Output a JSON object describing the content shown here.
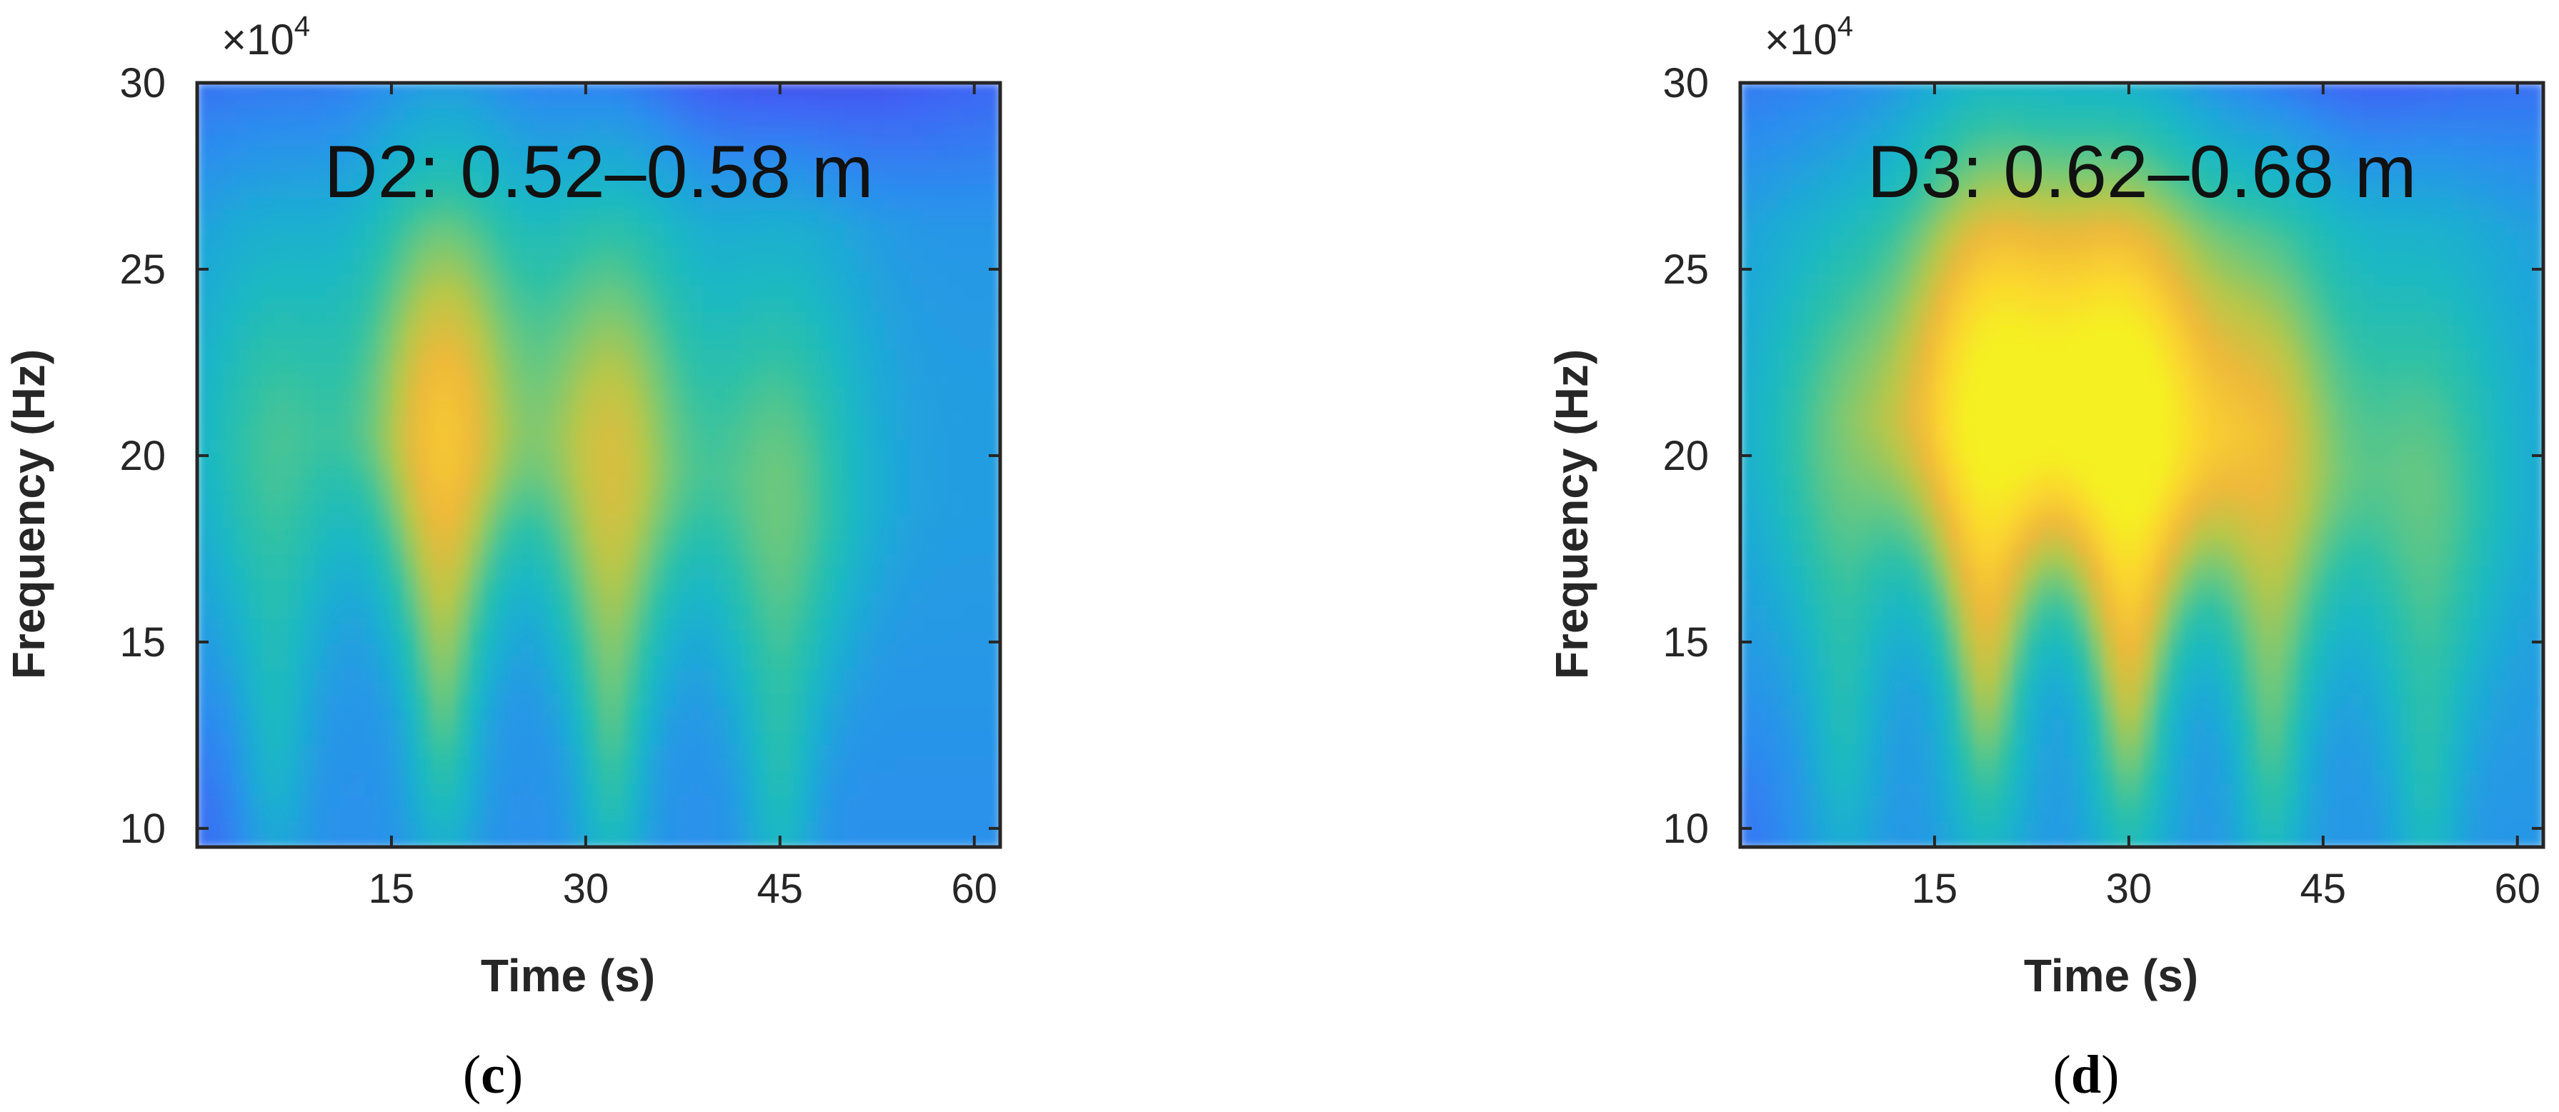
{
  "chart_data": [
    {
      "type": "heatmap",
      "caption_letter": "c",
      "annotation": "D2: 0.52–0.58 m",
      "xlabel": "Time (s)",
      "ylabel": "Frequency (Hz)",
      "y_multiplier": "×10",
      "y_multiplier_exp": "4",
      "xlim": [
        0,
        62
      ],
      "ylim": [
        9.5,
        30
      ],
      "x_ticks": [
        15,
        30,
        45,
        60
      ],
      "y_ticks": [
        10,
        15,
        20,
        25,
        30
      ],
      "colormap": [
        "#3e26a8",
        "#4433d6",
        "#3f64f5",
        "#2c8cef",
        "#1fa7d9",
        "#1bb8c4",
        "#2fc1a6",
        "#6ec87c",
        "#b6c74a",
        "#eeb93a",
        "#fbd52f",
        "#f5f023"
      ],
      "background_level": 0.28,
      "blobs": [
        {
          "t": 6,
          "f": 20,
          "amp": 0.24,
          "width_t": 4.5,
          "height_f": 4.5
        },
        {
          "t": 19,
          "f": 20.5,
          "amp": 0.52,
          "width_t": 4.5,
          "height_f": 5.5
        },
        {
          "t": 32,
          "f": 19.5,
          "amp": 0.44,
          "width_t": 4.5,
          "height_f": 5.5
        },
        {
          "t": 45,
          "f": 18.5,
          "amp": 0.3,
          "width_t": 4.5,
          "height_f": 5.0
        }
      ]
    },
    {
      "type": "heatmap",
      "caption_letter": "d",
      "annotation": "D3: 0.62–0.68 m",
      "xlabel": "Time (s)",
      "ylabel": "Frequency (Hz)",
      "y_multiplier": "×10",
      "y_multiplier_exp": "4",
      "xlim": [
        0,
        62
      ],
      "ylim": [
        9.5,
        30
      ],
      "x_ticks": [
        15,
        30,
        45,
        60
      ],
      "y_ticks": [
        10,
        15,
        20,
        25,
        30
      ],
      "colormap": [
        "#3e26a8",
        "#4433d6",
        "#3f64f5",
        "#2c8cef",
        "#1fa7d9",
        "#1bb8c4",
        "#2fc1a6",
        "#6ec87c",
        "#b6c74a",
        "#eeb93a",
        "#fbd52f",
        "#f5f023"
      ],
      "background_level": 0.3,
      "blobs": [
        {
          "t": 8,
          "f": 20,
          "amp": 0.26,
          "width_t": 4.5,
          "height_f": 4.5
        },
        {
          "t": 19,
          "f": 21,
          "amp": 0.62,
          "width_t": 5.0,
          "height_f": 6.0
        },
        {
          "t": 30,
          "f": 20.5,
          "amp": 0.66,
          "width_t": 5.0,
          "height_f": 6.0
        },
        {
          "t": 41,
          "f": 19.5,
          "amp": 0.42,
          "width_t": 4.5,
          "height_f": 5.5
        },
        {
          "t": 53,
          "f": 18.5,
          "amp": 0.26,
          "width_t": 4.5,
          "height_f": 5.0
        }
      ]
    }
  ]
}
